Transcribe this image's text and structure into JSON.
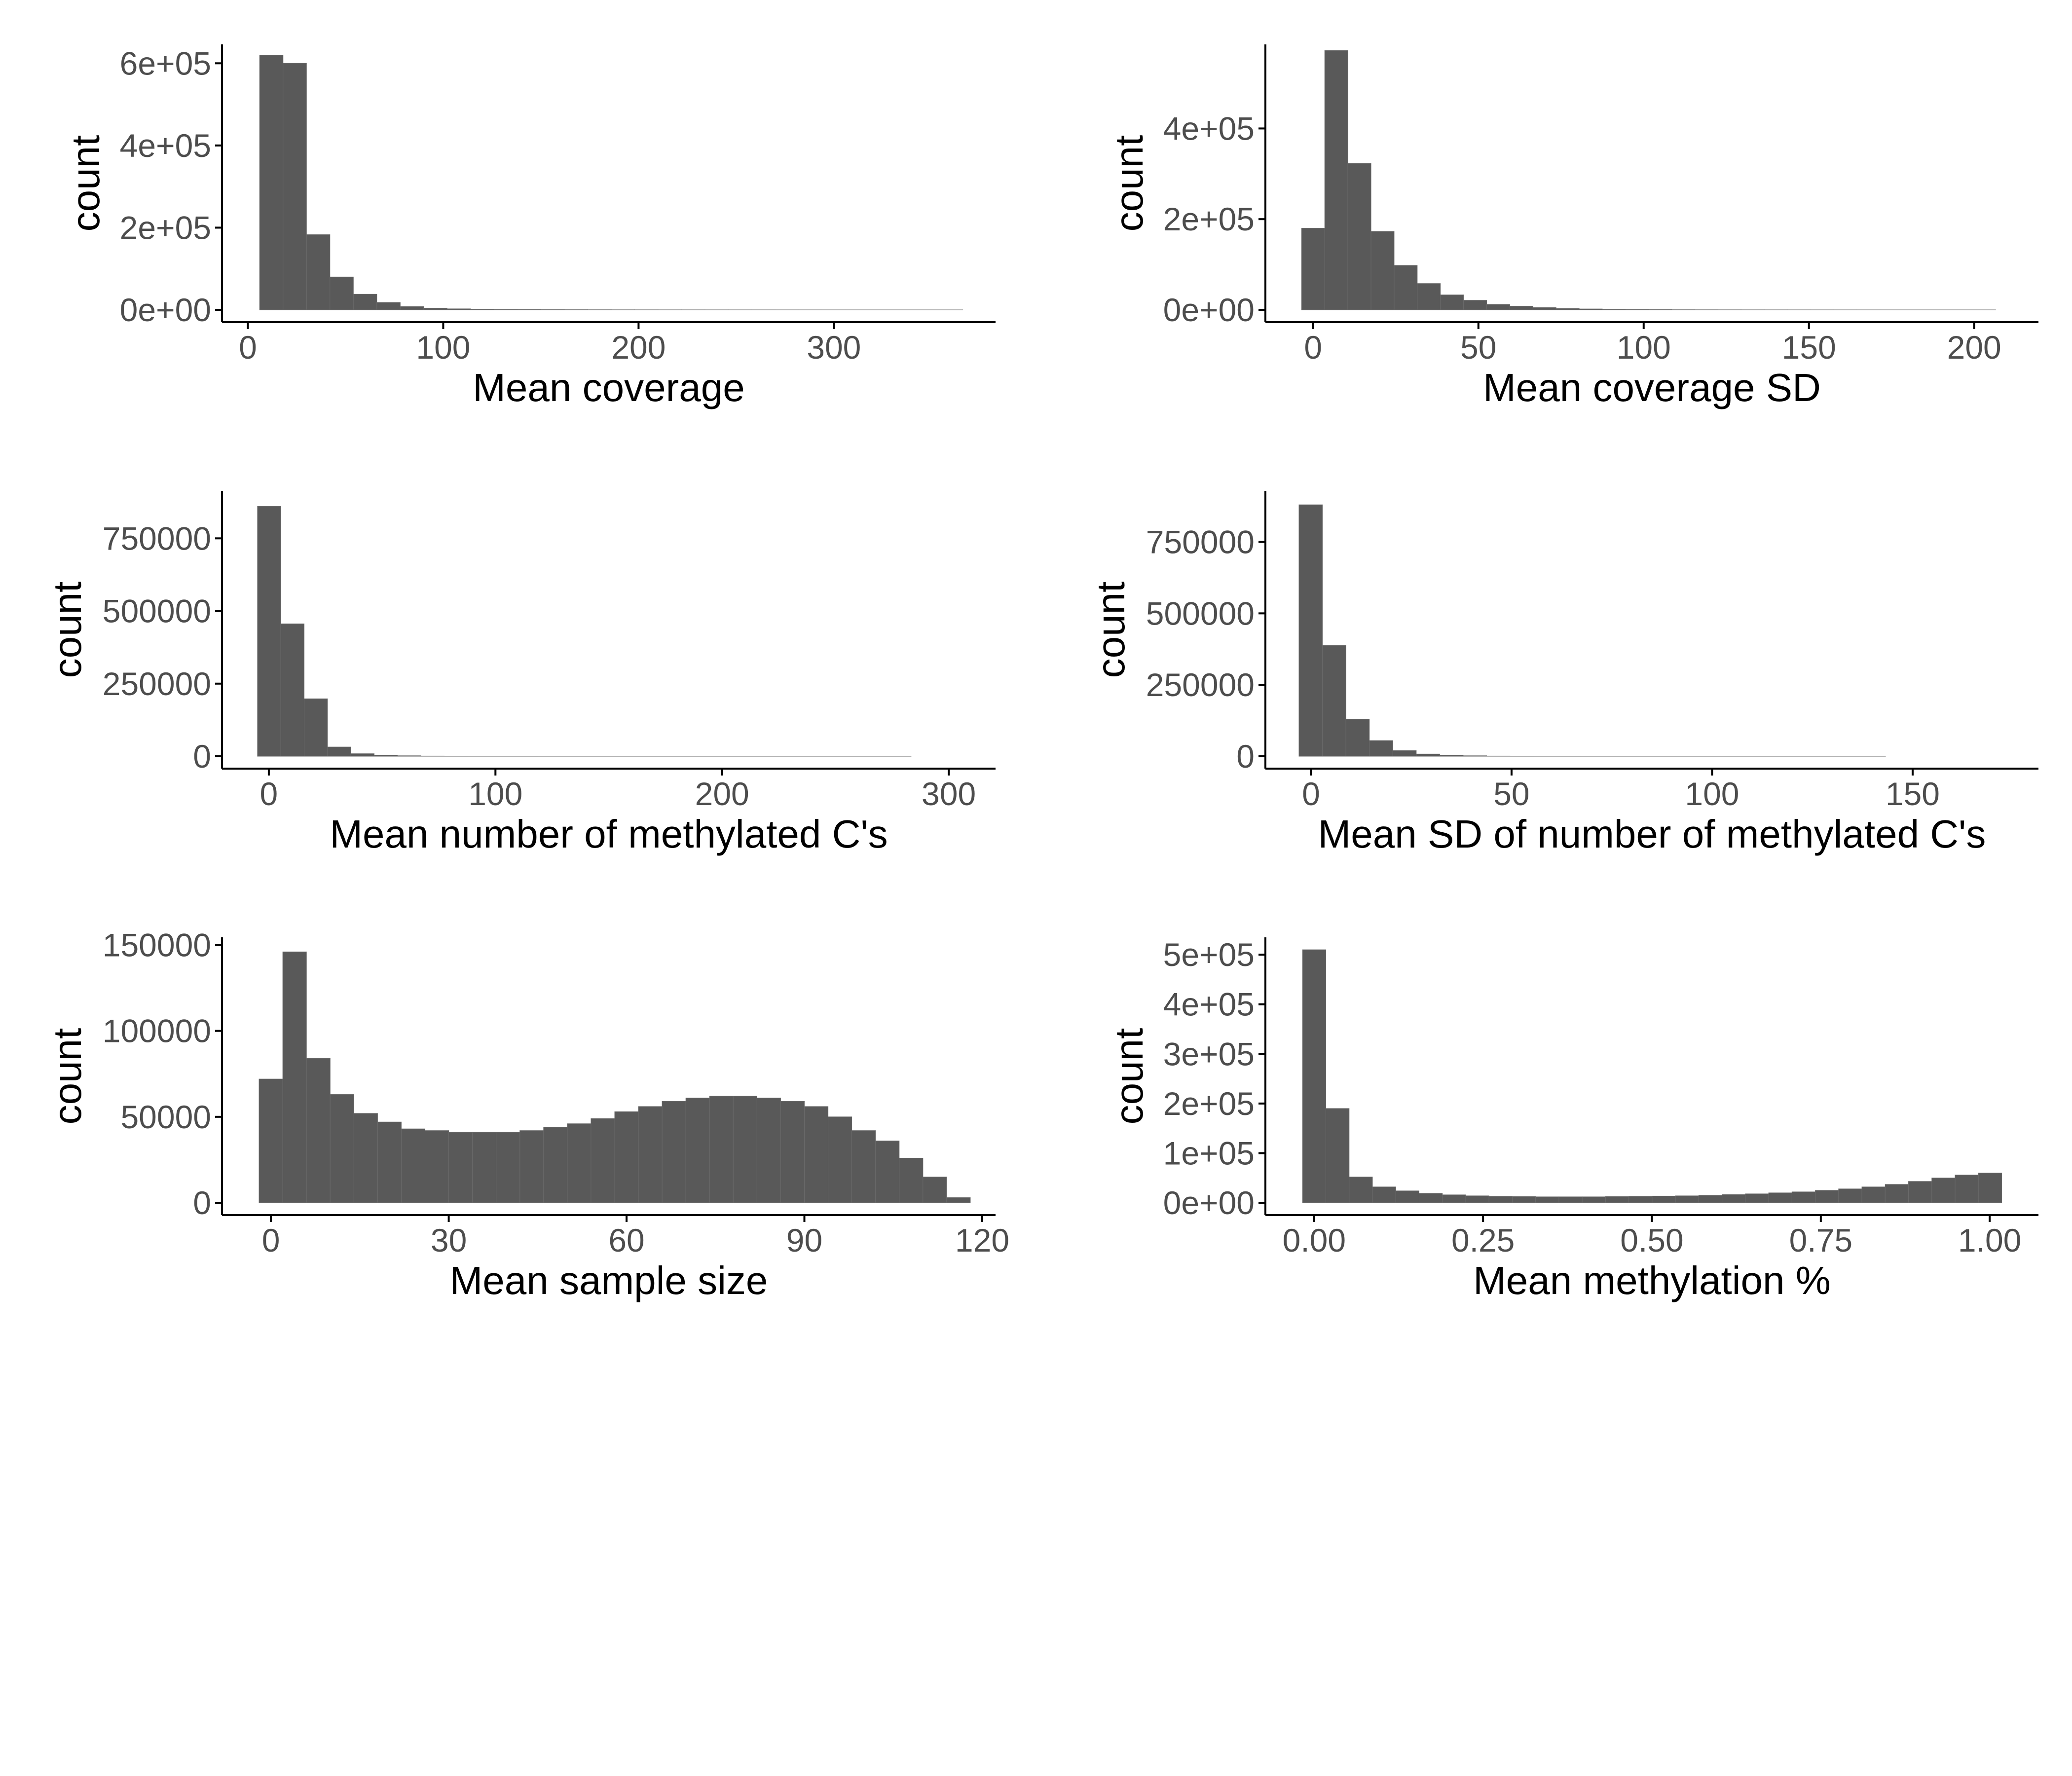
{
  "colors": {
    "bar_fill": "#595959",
    "axis": "#000000",
    "tick_label": "#4d4d4d",
    "background": "#ffffff"
  },
  "chart_data": [
    {
      "type": "bar",
      "histogram": true,
      "xlabel": "Mean coverage",
      "ylabel": "count",
      "xlim": [
        -12.5,
        382
      ],
      "ylim": [
        0,
        640000
      ],
      "xticks": [
        0,
        100,
        200,
        300
      ],
      "xtick_labels": [
        "0",
        "100",
        "200",
        "300"
      ],
      "yticks": [
        0,
        200000,
        400000,
        600000
      ],
      "ytick_labels": [
        "0e+00",
        "2e+05",
        "4e+05",
        "6e+05"
      ],
      "bin_start": 6,
      "bin_width": 12,
      "values": [
        620000,
        600000,
        183000,
        80000,
        38000,
        18000,
        8000,
        4000,
        2500,
        1500,
        1000,
        700,
        500,
        400,
        300,
        200,
        150,
        100,
        80,
        60,
        40,
        30,
        20,
        10,
        8,
        6,
        4,
        2,
        1,
        1
      ]
    },
    {
      "type": "bar",
      "histogram": true,
      "xlabel": "Mean coverage SD",
      "ylabel": "count",
      "xlim": [
        -14,
        219
      ],
      "ylim": [
        0,
        580000
      ],
      "xticks": [
        0,
        50,
        100,
        150,
        200
      ],
      "xtick_labels": [
        "0",
        "50",
        "100",
        "150",
        "200"
      ],
      "yticks": [
        0,
        200000,
        400000
      ],
      "ytick_labels": [
        "0e+00",
        "2e+05",
        "4e+05"
      ],
      "bin_start": -3.5,
      "bin_width": 7,
      "values": [
        180000,
        572000,
        323000,
        173000,
        98000,
        58000,
        33000,
        21000,
        12000,
        8000,
        5000,
        3000,
        2000,
        1200,
        800,
        500,
        300,
        200,
        150,
        100,
        70,
        50,
        30,
        20,
        10,
        5,
        3,
        2,
        1,
        1
      ]
    },
    {
      "type": "bar",
      "histogram": true,
      "xlabel": "Mean number of methylated C's",
      "ylabel": "count",
      "xlim": [
        -20,
        320
      ],
      "ylim": [
        0,
        905000
      ],
      "xticks": [
        0,
        100,
        200,
        300
      ],
      "xtick_labels": [
        "0",
        "100",
        "200",
        "300"
      ],
      "yticks": [
        0,
        250000,
        500000,
        750000
      ],
      "ytick_labels": [
        "0",
        "250000",
        "500000",
        "750000"
      ],
      "bin_start": -5,
      "bin_width": 10.3,
      "values": [
        860000,
        456000,
        198000,
        32000,
        9000,
        4000,
        2000,
        1000,
        600,
        400,
        300,
        200,
        150,
        100,
        80,
        60,
        40,
        30,
        20,
        10,
        8,
        6,
        4,
        3,
        2,
        1,
        1,
        1,
        0,
        0
      ]
    },
    {
      "type": "bar",
      "histogram": true,
      "xlabel": "Mean SD of number of methylated C's",
      "ylabel": "count",
      "xlim": [
        -11,
        181
      ],
      "ylim": [
        0,
        920000
      ],
      "xticks": [
        0,
        50,
        100,
        150
      ],
      "xtick_labels": [
        "0",
        "50",
        "100",
        "150"
      ],
      "yticks": [
        0,
        250000,
        500000,
        750000
      ],
      "ytick_labels": [
        "0",
        "250000",
        "500000",
        "750000"
      ],
      "bin_start": -3,
      "bin_width": 5.85,
      "values": [
        880000,
        388000,
        130000,
        55000,
        20000,
        8000,
        4000,
        2000,
        1000,
        600,
        400,
        250,
        150,
        100,
        70,
        50,
        30,
        20,
        10,
        8,
        5,
        3,
        2,
        1,
        1,
        0,
        0,
        0,
        0,
        0
      ]
    },
    {
      "type": "bar",
      "histogram": true,
      "xlabel": "Mean sample size",
      "ylabel": "count",
      "xlim": [
        -8,
        122
      ],
      "ylim": [
        0,
        153000
      ],
      "xticks": [
        0,
        30,
        60,
        90,
        120
      ],
      "xtick_labels": [
        "0",
        "30",
        "60",
        "90",
        "120"
      ],
      "yticks": [
        0,
        50000,
        100000,
        150000
      ],
      "ytick_labels": [
        "0",
        "50000",
        "100000",
        "150000"
      ],
      "bin_start": -2,
      "bin_width": 4,
      "values": [
        72000,
        146000,
        84000,
        63000,
        52000,
        47000,
        43000,
        42000,
        41000,
        41000,
        41000,
        42000,
        44000,
        46000,
        49000,
        53000,
        56000,
        59000,
        61000,
        62000,
        62000,
        61000,
        59000,
        56000,
        50000,
        42000,
        36000,
        26000,
        15000,
        3000
      ]
    },
    {
      "type": "bar",
      "histogram": true,
      "xlabel": "Mean methylation %",
      "ylabel": "count",
      "xlim": [
        -0.07,
        1.07
      ],
      "ylim": [
        0,
        530000
      ],
      "xticks": [
        0,
        0.25,
        0.5,
        0.75,
        1
      ],
      "xtick_labels": [
        "0.00",
        "0.25",
        "0.50",
        "0.75",
        "1.00"
      ],
      "yticks": [
        0,
        100000,
        200000,
        300000,
        400000,
        500000
      ],
      "ytick_labels": [
        "0e+00",
        "1e+05",
        "2e+05",
        "3e+05",
        "4e+05",
        "5e+05"
      ],
      "bin_start": -0.0172,
      "bin_width": 0.0345,
      "values": [
        510000,
        190000,
        52000,
        32000,
        24000,
        19000,
        16000,
        14000,
        13000,
        12500,
        12000,
        12000,
        12000,
        12500,
        13000,
        13500,
        14000,
        15000,
        16500,
        18000,
        20000,
        22000,
        25000,
        28000,
        32000,
        37000,
        43000,
        50000,
        56000,
        60000
      ]
    }
  ]
}
